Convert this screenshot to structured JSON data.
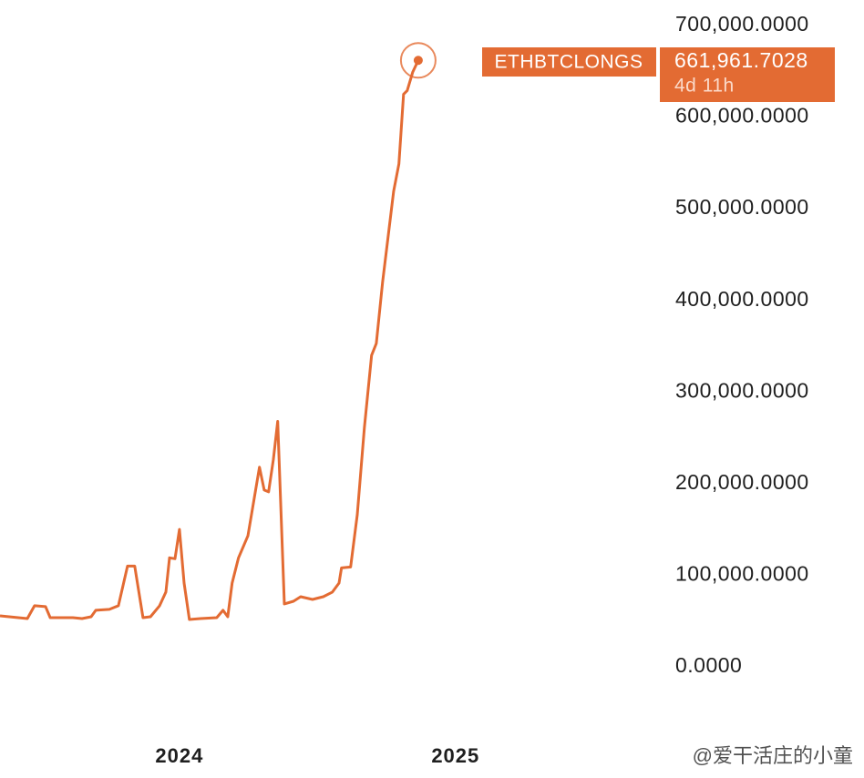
{
  "chart_data": {
    "type": "line",
    "x": [
      2023.35,
      2023.449,
      2023.475,
      2023.515,
      2023.532,
      2023.614,
      2023.647,
      2023.68,
      2023.697,
      2023.746,
      2023.779,
      2023.812,
      2023.838,
      2023.868,
      2023.895,
      2023.928,
      2023.951,
      2023.964,
      2023.984,
      2024.0,
      2024.017,
      2024.036,
      2024.076,
      2024.135,
      2024.158,
      2024.175,
      2024.191,
      2024.214,
      2024.248,
      2024.29,
      2024.307,
      2024.323,
      2024.34,
      2024.356,
      2024.38,
      2024.413,
      2024.439,
      2024.482,
      2024.521,
      2024.554,
      2024.578,
      2024.587,
      2024.62,
      2024.644,
      2024.67,
      2024.696,
      2024.713,
      2024.736,
      2024.776,
      2024.795,
      2024.812,
      2024.825,
      2024.845,
      2024.865
    ],
    "series": [
      {
        "name": "ETHBTCLONGS",
        "color": "#e36b33",
        "values": [
          55700,
          52700,
          66700,
          65700,
          53700,
          53700,
          52700,
          54700,
          61700,
          62700,
          66700,
          110000,
          110000,
          53700,
          54700,
          66700,
          81600,
          119000,
          118000,
          150000,
          91500,
          51700,
          52700,
          53700,
          61700,
          54700,
          91500,
          119000,
          143000,
          218000,
          193000,
          191000,
          226000,
          268000,
          68700,
          71600,
          76600,
          73600,
          76600,
          81600,
          91500,
          108000,
          109000,
          166000,
          261000,
          340000,
          353000,
          420000,
          519000,
          549000,
          625000,
          629000,
          649000,
          661961.7028
        ],
        "value_labels": [
          null,
          null,
          null,
          null,
          null,
          null,
          null,
          null,
          null,
          null,
          null,
          null,
          null,
          null,
          null,
          null,
          null,
          null,
          null,
          null,
          null,
          null,
          null,
          null,
          null,
          null,
          null,
          null,
          null,
          null,
          null,
          null,
          null,
          null,
          null,
          null,
          null,
          null,
          null,
          null,
          null,
          null,
          null,
          null,
          null,
          null,
          null,
          null,
          null,
          null,
          null,
          null,
          null,
          "661,961.7028"
        ]
      }
    ],
    "countdown": "4d 11h",
    "xlim": [
      2023.35,
      2025.76
    ],
    "xticks": [
      2024,
      2025
    ],
    "ylim": [
      0,
      700000
    ],
    "yticks": [
      {
        "value": 0,
        "label": "0.0000"
      },
      {
        "value": 100000,
        "label": "100,000.0000"
      },
      {
        "value": 200000,
        "label": "200,000.0000"
      },
      {
        "value": 300000,
        "label": "300,000.0000"
      },
      {
        "value": 400000,
        "label": "400,000.0000"
      },
      {
        "value": 500000,
        "label": "500,000.0000"
      },
      {
        "value": 600000,
        "label": "600,000.0000"
      },
      {
        "value": 700000,
        "label": "700,000.0000"
      }
    ],
    "watermark": "@爱干活庄的小童"
  }
}
